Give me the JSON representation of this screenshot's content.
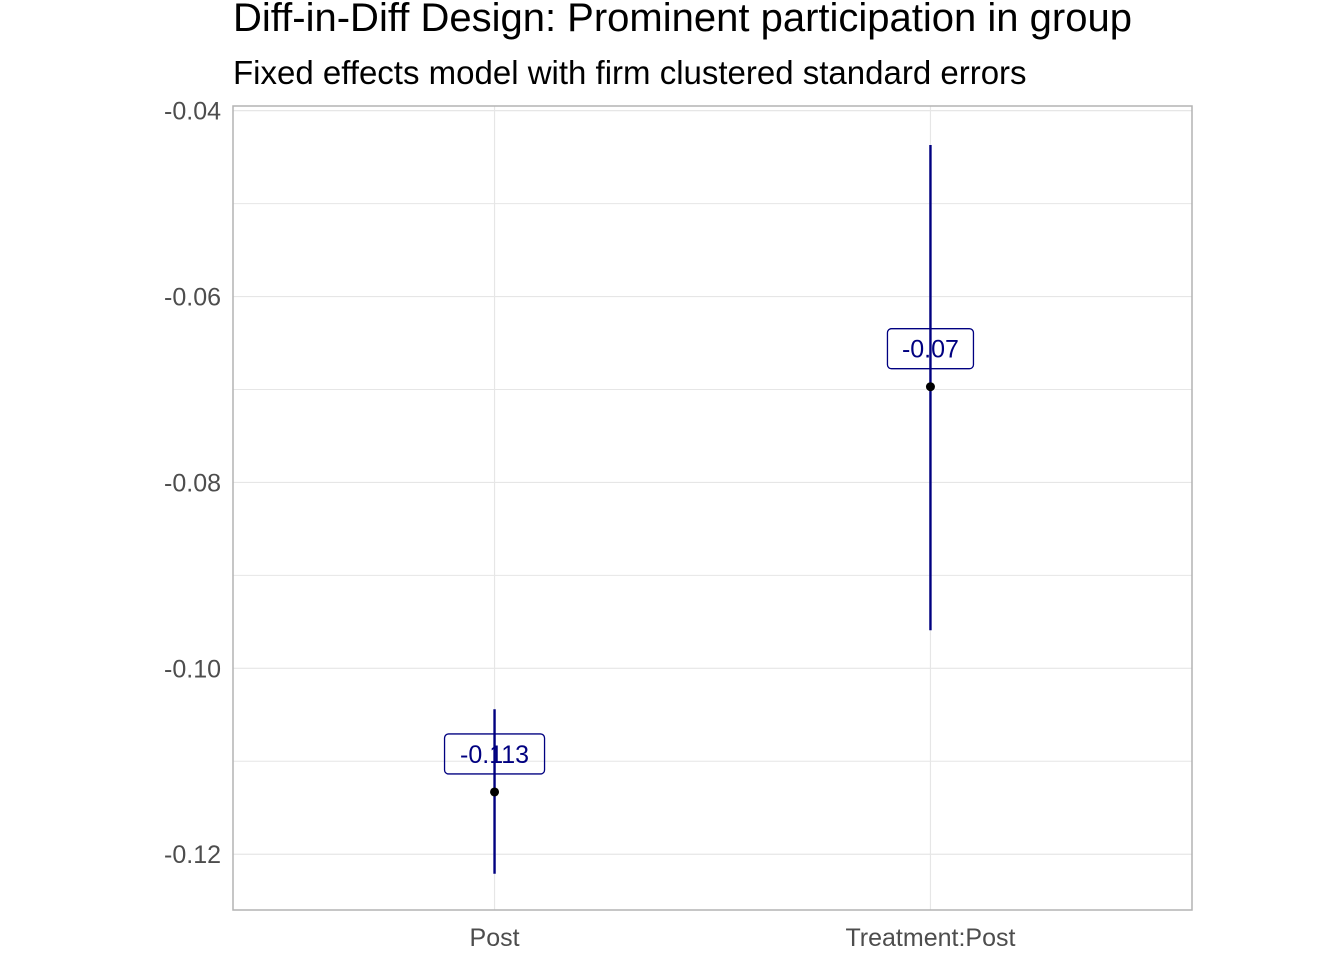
{
  "chart_data": {
    "type": "errorbar",
    "title": "Diff-in-Diff Design: Prominent participation in group",
    "subtitle": "Fixed effects model with firm clustered standard errors",
    "xlabel": "",
    "ylabel": "",
    "categories": [
      "Post",
      "Treatment:Post"
    ],
    "estimates": [
      -0.1133,
      -0.0697
    ],
    "ci_low": [
      -0.1221,
      -0.0959
    ],
    "ci_high": [
      -0.1044,
      -0.0437
    ],
    "data_labels": [
      "-0.113",
      "-0.07"
    ],
    "ylim": [
      -0.126,
      -0.0395
    ],
    "yticks": [
      -0.12,
      -0.1,
      -0.08,
      -0.06,
      -0.04
    ],
    "ytick_labels": [
      "-0.12",
      "-0.10",
      "-0.08",
      "-0.06",
      "-0.04"
    ],
    "grid": true,
    "legend": "none",
    "colors": {
      "errorbar": "#000080",
      "point": "#000000",
      "label_text": "#000080",
      "label_border": "#000080",
      "grid": "#e6e6e6",
      "panel_border": "#b3b3b3",
      "tick_text": "#4d4d4d"
    }
  }
}
